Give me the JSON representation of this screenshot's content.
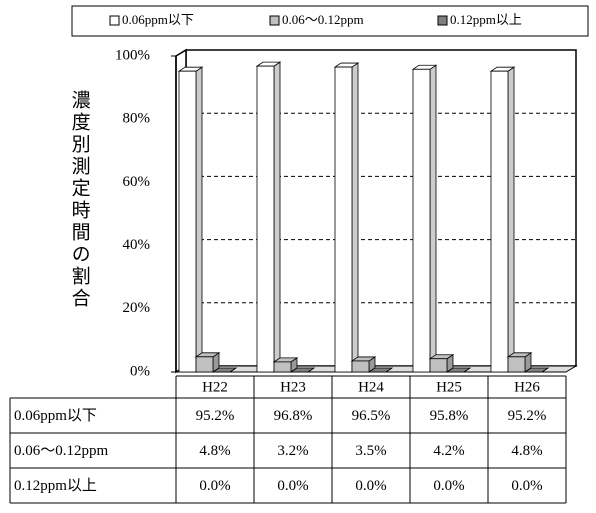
{
  "chart_data": {
    "type": "bar",
    "y_label": "濃度別測定時間の割合",
    "categories": [
      "H22",
      "H23",
      "H24",
      "H25",
      "H26"
    ],
    "series": [
      {
        "name": "0.06ppm以下",
        "color": "#ffffff",
        "values": [
          95.2,
          96.8,
          96.5,
          95.8,
          95.2
        ],
        "value_labels": [
          "95.2%",
          "96.8%",
          "96.5%",
          "95.8%",
          "95.2%"
        ]
      },
      {
        "name": "0.06～0.12ppm",
        "color": "#c0c0c0",
        "values": [
          4.8,
          3.2,
          3.5,
          4.2,
          4.8
        ],
        "value_labels": [
          "4.8%",
          "3.2%",
          "3.5%",
          "4.2%",
          "4.8%"
        ]
      },
      {
        "name": "0.12ppm以上",
        "color": "#808080",
        "values": [
          0,
          0,
          0,
          0,
          0
        ],
        "value_labels": [
          "0.0%",
          "0.0%",
          "0.0%",
          "0.0%",
          "0.0%"
        ]
      }
    ],
    "ylim": [
      0,
      100
    ],
    "yticks": [
      {
        "value": 0,
        "label": "0%"
      },
      {
        "value": 20,
        "label": "20%"
      },
      {
        "value": 40,
        "label": "40%"
      },
      {
        "value": 60,
        "label": "60%"
      },
      {
        "value": 80,
        "label": "80%"
      },
      {
        "value": 100,
        "label": "100%"
      }
    ],
    "grid": true
  }
}
